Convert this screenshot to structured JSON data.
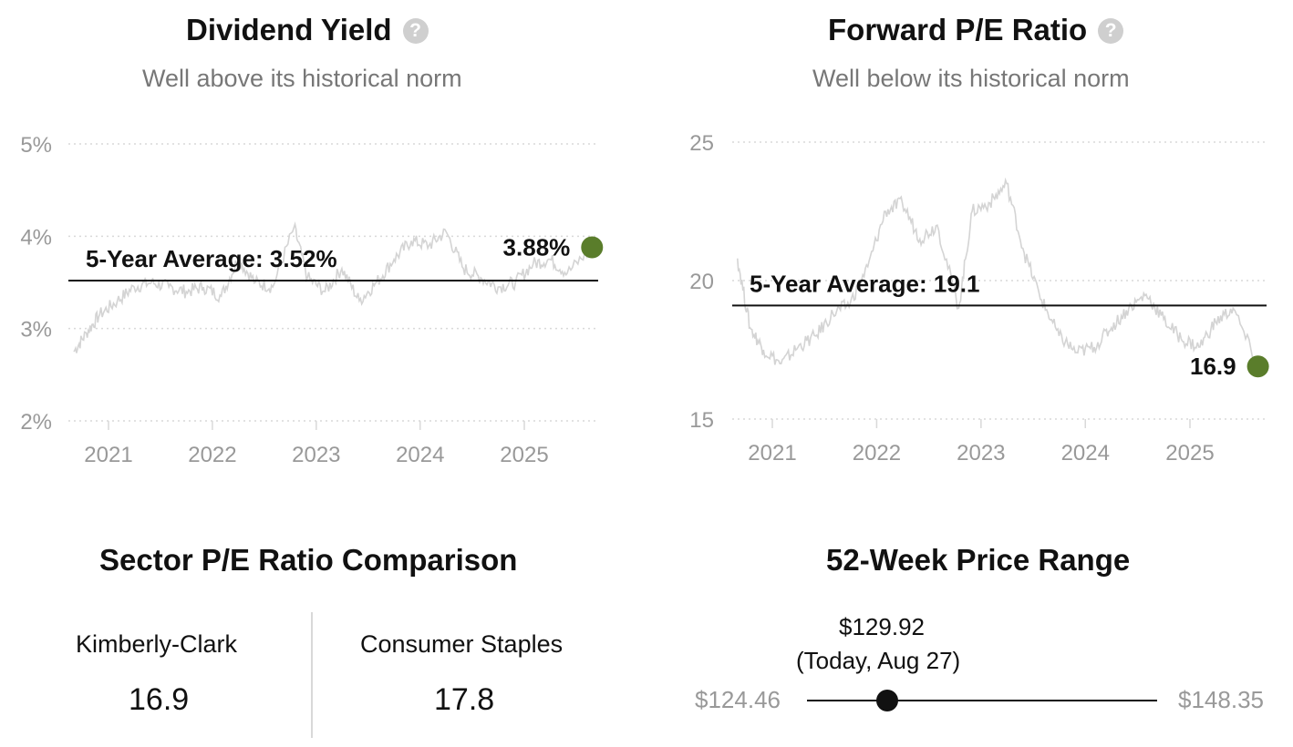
{
  "chart_data": [
    {
      "type": "line",
      "title": "Dividend Yield",
      "subtitle": "Well above its historical norm",
      "ylim": [
        2,
        5
      ],
      "y_ticks": [
        "2%",
        "3%",
        "4%",
        "5%"
      ],
      "x_ticks": [
        "2021",
        "2022",
        "2023",
        "2024",
        "2025"
      ],
      "grid": true,
      "average_label": "5-Year Average: 3.52%",
      "average_value": 3.52,
      "current_value": 3.88,
      "current_label": "3.88%",
      "series": [
        {
          "x": [
            "2020-09-01",
            "2020-10-15",
            "2020-12-01",
            "2021-02-01",
            "2021-04-01",
            "2021-06-01",
            "2021-08-01",
            "2021-10-01",
            "2021-12-01",
            "2022-02-01",
            "2022-04-01",
            "2022-06-01",
            "2022-08-01",
            "2022-10-15",
            "2022-12-01",
            "2023-02-01",
            "2023-04-01",
            "2023-06-01",
            "2023-08-01",
            "2023-10-01",
            "2023-12-01",
            "2024-02-01",
            "2024-04-01",
            "2024-06-01",
            "2024-08-01",
            "2024-10-01",
            "2024-12-01",
            "2025-02-01",
            "2025-04-01",
            "2025-06-01",
            "2025-08-27"
          ],
          "values": [
            2.75,
            2.95,
            3.15,
            3.3,
            3.45,
            3.5,
            3.45,
            3.4,
            3.45,
            3.35,
            3.75,
            3.5,
            3.45,
            4.1,
            3.55,
            3.4,
            3.65,
            3.3,
            3.5,
            3.75,
            3.95,
            3.9,
            4.05,
            3.65,
            3.55,
            3.45,
            3.5,
            3.7,
            3.75,
            3.6,
            3.88
          ]
        }
      ]
    },
    {
      "type": "line",
      "title": "Forward P/E Ratio",
      "subtitle": "Well below its historical norm",
      "ylim": [
        15,
        25
      ],
      "y_ticks": [
        "15",
        "20",
        "25"
      ],
      "x_ticks": [
        "2021",
        "2022",
        "2023",
        "2024",
        "2025"
      ],
      "grid": true,
      "average_label": "5-Year Average: 19.1",
      "average_value": 19.1,
      "current_value": 16.9,
      "current_label": "16.9",
      "series": [
        {
          "x": [
            "2020-09-01",
            "2020-10-15",
            "2020-12-01",
            "2021-02-01",
            "2021-04-01",
            "2021-06-01",
            "2021-08-01",
            "2021-10-01",
            "2021-12-01",
            "2022-02-01",
            "2022-04-01",
            "2022-06-01",
            "2022-08-01",
            "2022-10-15",
            "2022-12-01",
            "2023-02-01",
            "2023-04-01",
            "2023-06-01",
            "2023-08-01",
            "2023-10-01",
            "2023-12-01",
            "2024-02-01",
            "2024-04-01",
            "2024-06-01",
            "2024-08-01",
            "2024-10-01",
            "2024-12-01",
            "2025-02-01",
            "2025-04-01",
            "2025-06-01",
            "2025-08-27"
          ],
          "values": [
            20.8,
            18.3,
            17.5,
            17.0,
            17.6,
            18.0,
            18.8,
            19.2,
            20.5,
            22.5,
            22.8,
            21.5,
            22.0,
            19.0,
            22.5,
            22.8,
            23.5,
            21.0,
            19.3,
            18.0,
            17.4,
            17.6,
            18.3,
            19.0,
            19.5,
            18.6,
            17.9,
            17.6,
            18.5,
            19.0,
            16.9
          ]
        }
      ]
    }
  ],
  "sector": {
    "title": "Sector P/E Ratio Comparison",
    "left_name": "Kimberly-Clark",
    "left_value": "16.9",
    "right_name": "Consumer Staples",
    "right_value": "17.8"
  },
  "range52": {
    "title": "52-Week Price Range",
    "low": "$124.46",
    "high": "$148.35",
    "current": "$129.92",
    "current_note": "(Today, Aug 27)",
    "low_value": 124.46,
    "high_value": 148.35,
    "current_value": 129.92
  },
  "colors": {
    "line": "#d4d4d4",
    "marker": "#5a7d2b",
    "axis_text": "#999999",
    "grid": "#d9d9d9"
  },
  "icons": {
    "help": "question-circle-icon"
  }
}
